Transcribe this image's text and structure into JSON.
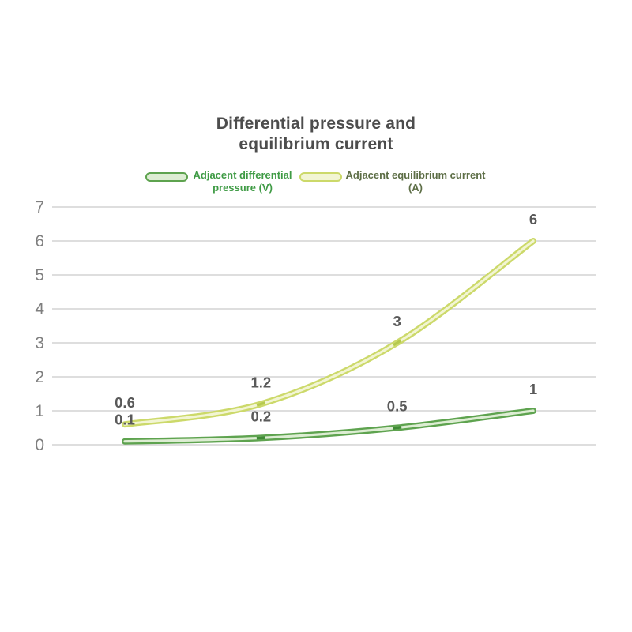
{
  "page": {
    "background": "#ffffff"
  },
  "title": {
    "text": "Differential pressure and equilibrium current",
    "line1": "Differential pressure and",
    "line2": "equilibrium current",
    "color": "#4d4d4d"
  },
  "legend": {
    "position": "top",
    "entries": [
      {
        "label": "Adjacent differential pressure (V)",
        "text_color": "#3f9b45",
        "swatch_outline": "#5ea34f",
        "swatch_fill": "#ddedd3"
      },
      {
        "label": "Adjacent equilibrium current (A)",
        "text_color": "#5d6e46",
        "swatch_outline": "#ccd96a",
        "swatch_fill": "#f2f5d3"
      }
    ]
  },
  "chart_data": {
    "type": "line",
    "title": "Differential pressure and equilibrium current",
    "xlabel": "",
    "ylabel": "",
    "ylim": [
      0,
      7
    ],
    "yticks": [
      0,
      1,
      2,
      3,
      4,
      5,
      6,
      7
    ],
    "x_tick_labels_visible": false,
    "grid": true,
    "grid_color": "#d9d9d9",
    "axis_label_color": "#7f7f7f",
    "data_label_color": "#595959",
    "legend_position": "top",
    "series": [
      {
        "name": "Adjacent differential pressure (V)",
        "values": [
          0.1,
          0.2,
          0.5,
          1
        ],
        "point_labels": [
          "0.1",
          "0.2",
          "0.5",
          "1"
        ],
        "line_color": "#5ea34f",
        "inner_color": "#ddedd3",
        "marker_color": "#3f8a35"
      },
      {
        "name": "Adjacent equilibrium current (A)",
        "values": [
          0.6,
          1.2,
          3,
          6
        ],
        "point_labels": [
          "0.6",
          "1.2",
          "3",
          "6"
        ],
        "line_color": "#ccd96a",
        "inner_color": "#f2f5d3",
        "marker_color": "#b5c94e"
      }
    ]
  }
}
